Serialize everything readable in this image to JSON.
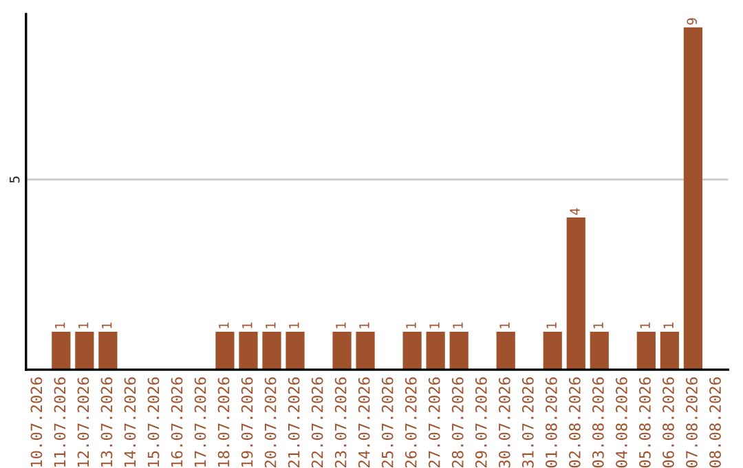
{
  "chart_data": {
    "type": "bar",
    "categories": [
      "10.07.2026",
      "11.07.2026",
      "12.07.2026",
      "13.07.2026",
      "14.07.2026",
      "15.07.2026",
      "16.07.2026",
      "17.07.2026",
      "18.07.2026",
      "19.07.2026",
      "20.07.2026",
      "21.07.2026",
      "22.07.2026",
      "23.07.2026",
      "24.07.2026",
      "25.07.2026",
      "26.07.2026",
      "27.07.2026",
      "28.07.2026",
      "29.07.2026",
      "30.07.2026",
      "31.07.2026",
      "01.08.2026",
      "02.08.2026",
      "03.08.2026",
      "04.08.2026",
      "05.08.2026",
      "06.08.2026",
      "07.08.2026",
      "08.08.2026"
    ],
    "values": [
      0,
      1,
      1,
      1,
      0,
      0,
      0,
      0,
      1,
      1,
      1,
      1,
      0,
      1,
      1,
      0,
      1,
      1,
      1,
      0,
      1,
      0,
      1,
      4,
      1,
      0,
      1,
      1,
      9,
      0
    ],
    "value_labels": [
      null,
      "1",
      "1",
      "1",
      null,
      null,
      null,
      null,
      "1",
      "1",
      "1",
      "1",
      null,
      "1",
      "1",
      null,
      "1",
      "1",
      "1",
      null,
      "1",
      null,
      "1",
      "4",
      "1",
      null,
      "1",
      "1",
      "9",
      null
    ],
    "color": "#a0522d",
    "ylim": [
      0,
      9.35
    ],
    "yticks": [
      5
    ],
    "grid": "y",
    "legend": false
  }
}
